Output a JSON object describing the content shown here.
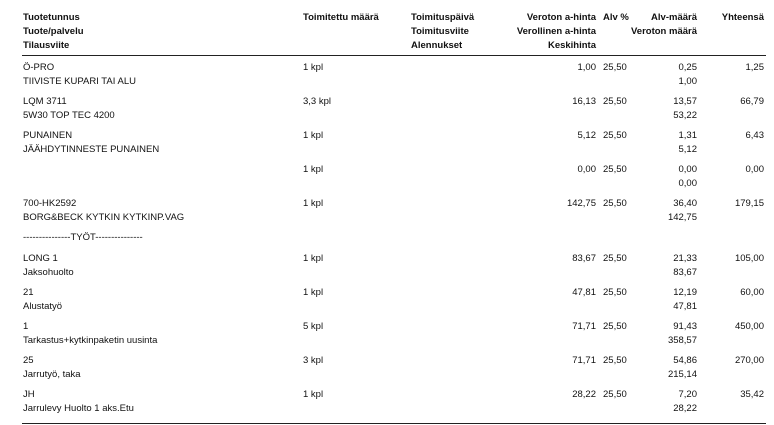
{
  "header": {
    "columns": [
      [
        "Tuotetunnus",
        "Tuote/palvelu",
        "Tilausviite"
      ],
      [
        "Toimitettu määrä"
      ],
      [
        "Toimituspäivä",
        "Toimitusviite",
        "Alennukset"
      ],
      [
        "Veroton a-hinta",
        "Verollinen a-hinta",
        "Keskihinta"
      ],
      [
        "Alv %"
      ],
      [
        "Alv-määrä",
        "Veroton määrä"
      ],
      [
        "Yhteensä"
      ]
    ]
  },
  "items": [
    {
      "code": "Ö-PRO",
      "name": "TIIVISTE KUPARI TAI ALU",
      "qty": "1 kpl",
      "price": "1,00",
      "vat_pct": "25,50",
      "vat_amount": "0,25",
      "net_amount": "1,00",
      "total": "1,25"
    },
    {
      "code": "LQM 3711",
      "name": "5W30 TOP TEC 4200",
      "qty": "3,3 kpl",
      "price": "16,13",
      "vat_pct": "25,50",
      "vat_amount": "13,57",
      "net_amount": "53,22",
      "total": "66,79"
    },
    {
      "code": "PUNAINEN",
      "name": "JÄÄHDYTINNESTE PUNAINEN",
      "qty": "1 kpl",
      "price": "5,12",
      "vat_pct": "25,50",
      "vat_amount": "1,31",
      "net_amount": "5,12",
      "total": "6,43"
    },
    {
      "qty": "1 kpl",
      "price": "0,00",
      "vat_pct": "25,50",
      "vat_amount": "0,00",
      "net_amount": "0,00",
      "total": "0,00"
    },
    {
      "code": "700-HK2592",
      "name": "BORG&BECK KYTKIN KYTKINP.VAG",
      "qty": "1 kpl",
      "price": "142,75",
      "vat_pct": "25,50",
      "vat_amount": "36,40",
      "net_amount": "142,75",
      "total": "179,15"
    },
    {
      "separator": "---------------TYÖT---------------"
    },
    {
      "code": "LONG 1",
      "name": "Jaksohuolto",
      "qty": "1 kpl",
      "price": "83,67",
      "vat_pct": "25,50",
      "vat_amount": "21,33",
      "net_amount": "83,67",
      "total": "105,00"
    },
    {
      "code": "21",
      "name": "Alustatyö",
      "qty": "1 kpl",
      "price": "47,81",
      "vat_pct": "25,50",
      "vat_amount": "12,19",
      "net_amount": "47,81",
      "total": "60,00"
    },
    {
      "code": "1",
      "name": "Tarkastus+kytkinpaketin uusinta",
      "qty": "5 kpl",
      "price": "71,71",
      "vat_pct": "25,50",
      "vat_amount": "91,43",
      "net_amount": "358,57",
      "total": "450,00"
    },
    {
      "code": "25",
      "name": "Jarrutyö, taka",
      "qty": "3 kpl",
      "price": "71,71",
      "vat_pct": "25,50",
      "vat_amount": "54,86",
      "net_amount": "215,14",
      "total": "270,00"
    },
    {
      "code": "JH",
      "name": "Jarrulevy Huolto 1 aks.Etu",
      "qty": "1 kpl",
      "price": "28,22",
      "vat_pct": "25,50",
      "vat_amount": "7,20",
      "net_amount": "28,22",
      "total": "35,42"
    }
  ]
}
